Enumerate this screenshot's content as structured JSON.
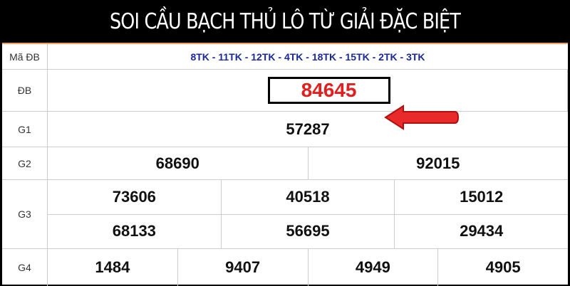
{
  "title": "SOI CẦU BẠCH THỦ LÔ TỪ GIẢI ĐẶC BIỆT",
  "rows": {
    "ma_db": {
      "label": "Mã ĐB",
      "value": "8TK - 11TK - 12TK - 4TK - 18TK - 15TK - 2TK - 3TK"
    },
    "db": {
      "label": "ĐB",
      "value": "84645"
    },
    "g1": {
      "label": "G1",
      "values": [
        "57287"
      ]
    },
    "g2": {
      "label": "G2",
      "values": [
        "68690",
        "92015"
      ]
    },
    "g3": {
      "label": "G3",
      "values": [
        "73606",
        "40518",
        "15012",
        "68133",
        "56695",
        "29434"
      ]
    },
    "g4": {
      "label": "G4",
      "values": [
        "1484",
        "9407",
        "4949",
        "4905"
      ]
    }
  },
  "colors": {
    "highlight": "#e02020",
    "codes": "#1a2a9a",
    "accent": "#f0a060"
  },
  "icons": {
    "pointer": "red-left-arrow-icon"
  }
}
